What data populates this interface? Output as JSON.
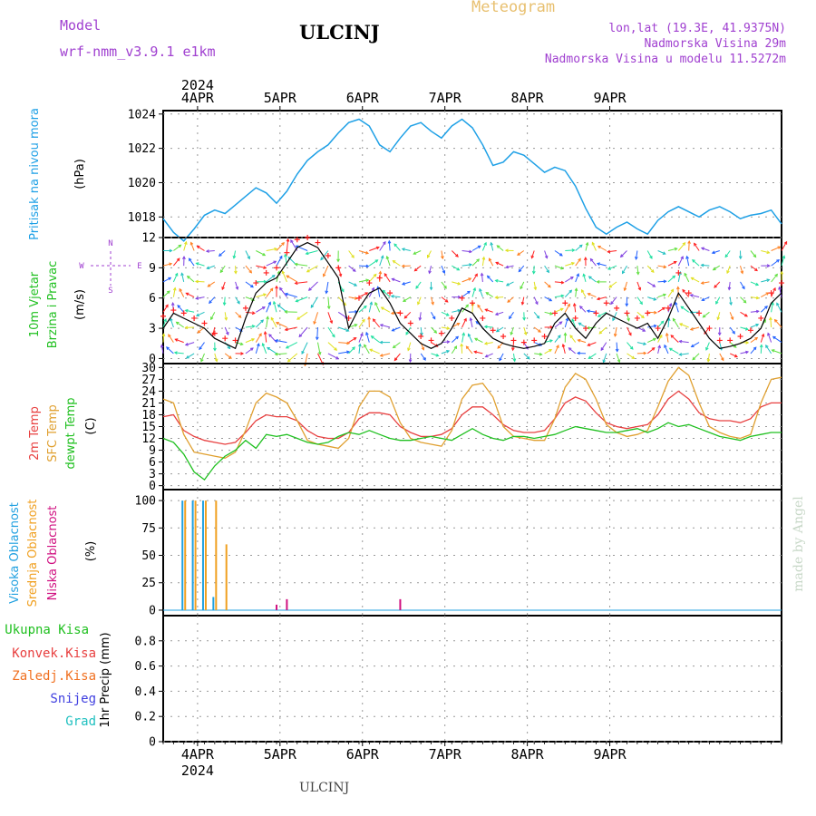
{
  "header": {
    "model_label": "Model",
    "model_name": "wrf-nmm_v3.9.1  e1km",
    "station": "ULCINJ",
    "product": "Meteogram",
    "coords": "lon,lat (19.3E, 41.9375N)",
    "altitude": "Nadmorska Visina 29m",
    "model_altitude": "Nadmorska Visina u modelu 11.5272m"
  },
  "footer": {
    "station": "ULCINJ",
    "credit": "made by Angel"
  },
  "colors": {
    "pressure": "#1ea0e6",
    "wind_speed": "#000000",
    "gust": "#ff2020",
    "temp2m": "#e84040",
    "sfc_temp": "#e0a030",
    "dewpoint": "#20c020",
    "high_cloud": "#20a0e0",
    "mid_cloud": "#f0a020",
    "low_cloud": "#d01080",
    "model": "#a040d0",
    "product": "#e8c070",
    "total_precip": "#20c020",
    "conv_precip": "#e84040",
    "frozen_precip": "#f07020",
    "snow": "#4040e0",
    "hail": "#20c0c0"
  },
  "chart_data": [
    {
      "type": "line",
      "title": "",
      "ylabel": "Pritisak na nivou mora",
      "unit": "(hPa)",
      "x_start": "2024-04-03 14:00",
      "x_step_hours": 3,
      "x_ticks": [
        "4APR",
        "5APR",
        "6APR",
        "7APR",
        "8APR",
        "9APR"
      ],
      "x_year": "2024",
      "ylim": [
        1016.8,
        1024.2
      ],
      "yticks": [
        "1018",
        "1020",
        "1022",
        "1024"
      ],
      "grid": true,
      "series": [
        {
          "values": [
            1017.9,
            1017.1,
            1016.6,
            1017.3,
            1018.1,
            1018.4,
            1018.2,
            1018.7,
            1019.2,
            1019.7,
            1019.4,
            1018.8,
            1019.5,
            1020.5,
            1021.3,
            1021.8,
            1022.2,
            1022.9,
            1023.5,
            1023.7,
            1023.3,
            1022.2,
            1021.8,
            1022.6,
            1023.3,
            1023.5,
            1023.0,
            1022.6,
            1023.3,
            1023.7,
            1023.2,
            1022.2,
            1021.0,
            1021.2,
            1021.8,
            1021.6,
            1021.1,
            1020.6,
            1020.9,
            1020.7,
            1019.8,
            1018.5,
            1017.4,
            1017.0,
            1017.4,
            1017.7,
            1017.3,
            1017.0,
            1017.8,
            1018.3,
            1018.6,
            1018.3,
            1018.0,
            1018.4,
            1018.6,
            1018.3,
            1017.9,
            1018.1,
            1018.2,
            1018.4,
            1017.6
          ]
        }
      ]
    },
    {
      "type": "line",
      "title": "",
      "ylabel": "10m Vjetar Brzina i Pravac",
      "unit": "(m/s)",
      "compass": [
        "N",
        "W",
        "E",
        "S"
      ],
      "ylim": [
        -0.5,
        12
      ],
      "yticks": [
        "0",
        "3",
        "6",
        "9",
        "12"
      ],
      "grid": true,
      "series": [
        {
          "name": "speed",
          "values": [
            3.0,
            4.5,
            4.0,
            3.5,
            3.0,
            2.0,
            1.5,
            1.0,
            4.0,
            6.5,
            7.5,
            8.0,
            9.5,
            11.0,
            11.5,
            11.0,
            9.5,
            8.0,
            3.0,
            5.0,
            6.5,
            7.0,
            5.5,
            3.5,
            2.5,
            1.5,
            1.0,
            1.5,
            3.0,
            5.0,
            4.5,
            3.0,
            2.0,
            1.5,
            1.2,
            1.0,
            1.2,
            1.5,
            3.5,
            4.5,
            3.0,
            2.0,
            3.5,
            4.5,
            4.0,
            3.5,
            3.0,
            3.5,
            2.0,
            4.0,
            6.5,
            5.0,
            3.5,
            2.0,
            1.0,
            1.2,
            1.5,
            2.0,
            3.0,
            5.5,
            6.5
          ]
        },
        {
          "name": "gust",
          "values": [
            4.2,
            4.8,
            4.5,
            4.0,
            3.5,
            2.5,
            2.0,
            1.8,
            5.0,
            7.5,
            8.5,
            9.0,
            10.5,
            11.8,
            12.0,
            11.5,
            10.2,
            9.0,
            4.0,
            6.0,
            7.5,
            8.0,
            6.5,
            4.5,
            3.5,
            2.2,
            1.8,
            2.5,
            4.0,
            6.0,
            5.5,
            4.0,
            2.8,
            2.2,
            1.8,
            1.6,
            1.8,
            2.2,
            4.5,
            5.5,
            4.0,
            3.0,
            4.5,
            5.5,
            5.0,
            4.5,
            4.0,
            4.5,
            3.0,
            5.0,
            8.5,
            6.5,
            4.5,
            3.0,
            1.8,
            1.8,
            2.2,
            2.8,
            4.0,
            6.5,
            7.5
          ]
        }
      ]
    },
    {
      "type": "line",
      "title": "",
      "ylabel": "2m Temp / SFC Temp / dewpt Temp",
      "unit": "(C)",
      "ylim": [
        -1,
        31
      ],
      "yticks": [
        "0",
        "3",
        "6",
        "9",
        "12",
        "15",
        "18",
        "21",
        "24",
        "27",
        "30"
      ],
      "grid": true,
      "series": [
        {
          "name": "2m Temp",
          "values": [
            17.5,
            18.0,
            14.0,
            12.5,
            11.5,
            11.0,
            10.5,
            11.0,
            13.5,
            16.5,
            18.0,
            17.5,
            17.5,
            16.5,
            14.0,
            12.5,
            12.0,
            12.0,
            13.5,
            17.0,
            18.5,
            18.5,
            18.0,
            15.0,
            13.5,
            12.5,
            12.5,
            13.0,
            14.5,
            18.0,
            20.0,
            20.0,
            18.0,
            15.5,
            14.0,
            13.5,
            13.5,
            14.0,
            17.0,
            21.0,
            22.5,
            21.5,
            18.5,
            16.0,
            15.0,
            14.5,
            15.0,
            15.5,
            18.0,
            22.0,
            24.0,
            22.0,
            18.5,
            17.0,
            16.5,
            16.5,
            16.0,
            17.0,
            20.0,
            21.0,
            21.0
          ]
        },
        {
          "name": "SFC Temp",
          "values": [
            22.0,
            21.0,
            13.0,
            8.5,
            8.0,
            7.5,
            7.0,
            8.5,
            14.0,
            21.0,
            23.5,
            22.5,
            21.0,
            16.5,
            11.5,
            10.5,
            10.0,
            9.5,
            12.0,
            20.0,
            24.0,
            24.0,
            22.5,
            16.0,
            12.0,
            11.0,
            10.5,
            10.0,
            14.0,
            22.0,
            25.5,
            26.0,
            22.5,
            15.0,
            12.5,
            12.0,
            11.5,
            11.5,
            17.0,
            25.0,
            28.5,
            27.0,
            22.0,
            15.5,
            13.5,
            12.5,
            13.0,
            14.0,
            20.0,
            26.5,
            30.0,
            28.0,
            21.0,
            15.0,
            13.5,
            12.5,
            12.0,
            13.0,
            21.0,
            27.0,
            27.5
          ]
        },
        {
          "name": "dewpt Temp",
          "values": [
            12.0,
            11.0,
            8.0,
            3.5,
            1.5,
            5.0,
            7.5,
            9.0,
            11.5,
            9.5,
            13.0,
            12.5,
            13.0,
            12.0,
            11.0,
            10.5,
            11.0,
            12.5,
            13.5,
            13.0,
            14.0,
            13.0,
            12.0,
            11.5,
            11.5,
            12.0,
            12.5,
            12.0,
            11.5,
            13.0,
            14.5,
            13.0,
            12.0,
            11.5,
            12.5,
            12.5,
            12.0,
            12.5,
            13.0,
            14.0,
            15.0,
            14.5,
            14.0,
            13.5,
            13.5,
            14.0,
            14.5,
            13.5,
            14.5,
            16.0,
            15.0,
            15.5,
            14.5,
            13.5,
            12.5,
            12.0,
            11.5,
            12.5,
            13.0,
            13.5,
            13.5
          ]
        }
      ]
    },
    {
      "type": "bar",
      "title": "",
      "ylabel": "Visoka Oblacnost / Srednja Oblacnost / Niska Oblacnost",
      "unit": "(%)",
      "ylim": [
        -5,
        110
      ],
      "yticks": [
        "0",
        "25",
        "50",
        "75",
        "100"
      ],
      "grid": true,
      "series": [
        {
          "name": "Visoka Oblacnost",
          "index": [
            2,
            3,
            4,
            5
          ],
          "values": [
            100,
            100,
            100,
            12
          ]
        },
        {
          "name": "Srednja Oblacnost",
          "index": [
            2,
            3,
            4,
            5,
            6
          ],
          "values": [
            100,
            100,
            100,
            100,
            60
          ]
        },
        {
          "name": "Niska Oblacnost",
          "index": [
            11,
            12,
            23
          ],
          "values": [
            5,
            10,
            10
          ]
        }
      ]
    },
    {
      "type": "bar",
      "title": "",
      "ylabel": "1hr Precip",
      "unit": "(mm)",
      "ylim": [
        0,
        1.0
      ],
      "yticks": [
        "0",
        "0.2",
        "0.4",
        "0.6",
        "0.8"
      ],
      "grid": true,
      "legend": [
        "Ukupna Kisa",
        "Konvek.Kisa",
        "Zaledj.Kisa",
        "Snijeg",
        "Grad"
      ],
      "series": []
    }
  ]
}
